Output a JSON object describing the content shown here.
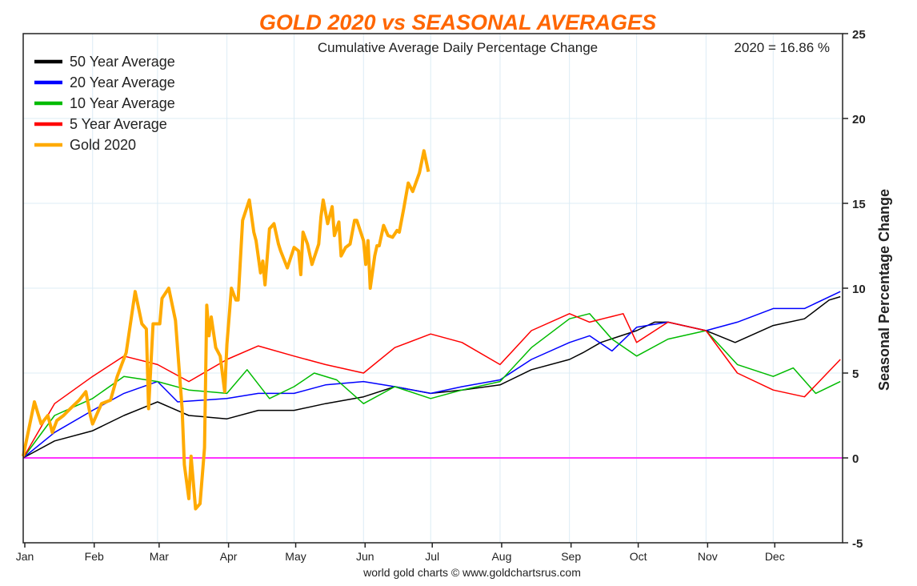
{
  "chart_data": {
    "type": "line",
    "title": "GOLD 2020 vs SEASONAL AVERAGES",
    "subtitle": "Cumulative Average Daily Percentage Change",
    "annotation": "2020 = 16.86 %",
    "ylabel": "Seasonal Percentage Change",
    "xlabel": "",
    "footer": "world gold charts © www.goldchartsrus.com",
    "ylim": [
      -5,
      25
    ],
    "yticks": [
      -5,
      0,
      5,
      10,
      15,
      20,
      25
    ],
    "y_axis_side": "right",
    "xticks": [
      "Jan",
      "Feb",
      "Mar",
      "Apr",
      "May",
      "Jun",
      "Jul",
      "Aug",
      "Sep",
      "Oct",
      "Nov",
      "Dec"
    ],
    "grid": true,
    "legend_position": "top-left",
    "zero_line_color": "#ff33ff",
    "series": [
      {
        "name": "50 Year Average",
        "color": "#000000",
        "points": [
          [
            "01-01",
            0
          ],
          [
            "01-15",
            1.0
          ],
          [
            "02-01",
            1.6
          ],
          [
            "02-15",
            2.5
          ],
          [
            "03-01",
            3.3
          ],
          [
            "03-15",
            2.5
          ],
          [
            "04-01",
            2.3
          ],
          [
            "04-15",
            2.8
          ],
          [
            "05-01",
            2.8
          ],
          [
            "05-15",
            3.2
          ],
          [
            "06-01",
            3.6
          ],
          [
            "06-15",
            4.2
          ],
          [
            "07-01",
            3.8
          ],
          [
            "07-15",
            4.0
          ],
          [
            "08-01",
            4.3
          ],
          [
            "08-15",
            5.2
          ],
          [
            "09-01",
            5.8
          ],
          [
            "09-07",
            6.2
          ],
          [
            "09-15",
            6.8
          ],
          [
            "10-01",
            7.5
          ],
          [
            "10-09",
            8.0
          ],
          [
            "10-15",
            8.0
          ],
          [
            "11-01",
            7.5
          ],
          [
            "11-14",
            6.8
          ],
          [
            "12-01",
            7.8
          ],
          [
            "12-15",
            8.2
          ],
          [
            "12-26",
            9.3
          ],
          [
            "12-31",
            9.5
          ]
        ]
      },
      {
        "name": "20 Year Average",
        "color": "#0000ff",
        "points": [
          [
            "01-01",
            0
          ],
          [
            "01-15",
            1.5
          ],
          [
            "02-01",
            2.8
          ],
          [
            "02-15",
            3.8
          ],
          [
            "03-01",
            4.5
          ],
          [
            "03-10",
            3.3
          ],
          [
            "04-01",
            3.5
          ],
          [
            "04-15",
            3.8
          ],
          [
            "05-01",
            3.8
          ],
          [
            "05-15",
            4.3
          ],
          [
            "06-01",
            4.5
          ],
          [
            "06-15",
            4.2
          ],
          [
            "07-01",
            3.8
          ],
          [
            "07-15",
            4.2
          ],
          [
            "08-01",
            4.6
          ],
          [
            "08-15",
            5.8
          ],
          [
            "09-01",
            6.8
          ],
          [
            "09-10",
            7.2
          ],
          [
            "09-20",
            6.3
          ],
          [
            "10-01",
            7.7
          ],
          [
            "10-15",
            8.0
          ],
          [
            "11-01",
            7.5
          ],
          [
            "11-15",
            8.0
          ],
          [
            "12-01",
            8.8
          ],
          [
            "12-15",
            8.8
          ],
          [
            "12-31",
            9.8
          ]
        ]
      },
      {
        "name": "10 Year Average",
        "color": "#00bb00",
        "points": [
          [
            "01-01",
            0
          ],
          [
            "01-15",
            2.5
          ],
          [
            "02-01",
            3.5
          ],
          [
            "02-15",
            4.8
          ],
          [
            "03-01",
            4.5
          ],
          [
            "03-15",
            4.0
          ],
          [
            "04-01",
            3.8
          ],
          [
            "04-10",
            5.2
          ],
          [
            "04-20",
            3.5
          ],
          [
            "05-01",
            4.2
          ],
          [
            "05-10",
            5.0
          ],
          [
            "05-20",
            4.6
          ],
          [
            "06-01",
            3.2
          ],
          [
            "06-15",
            4.2
          ],
          [
            "07-01",
            3.5
          ],
          [
            "07-15",
            4.0
          ],
          [
            "08-01",
            4.5
          ],
          [
            "08-15",
            6.5
          ],
          [
            "09-01",
            8.2
          ],
          [
            "09-10",
            8.5
          ],
          [
            "09-20",
            7.0
          ],
          [
            "10-01",
            6.0
          ],
          [
            "10-15",
            7.0
          ],
          [
            "11-01",
            7.5
          ],
          [
            "11-15",
            5.5
          ],
          [
            "12-01",
            4.8
          ],
          [
            "12-10",
            5.3
          ],
          [
            "12-20",
            3.8
          ],
          [
            "12-31",
            4.5
          ]
        ]
      },
      {
        "name": "5 Year Average",
        "color": "#ff0000",
        "points": [
          [
            "01-01",
            0
          ],
          [
            "01-15",
            3.2
          ],
          [
            "02-01",
            4.8
          ],
          [
            "02-15",
            6.0
          ],
          [
            "03-01",
            5.5
          ],
          [
            "03-15",
            4.5
          ],
          [
            "04-01",
            5.8
          ],
          [
            "04-15",
            6.6
          ],
          [
            "05-01",
            6.0
          ],
          [
            "05-15",
            5.5
          ],
          [
            "06-01",
            5.0
          ],
          [
            "06-15",
            6.5
          ],
          [
            "07-01",
            7.3
          ],
          [
            "07-15",
            6.8
          ],
          [
            "08-01",
            5.5
          ],
          [
            "08-15",
            7.5
          ],
          [
            "09-01",
            8.5
          ],
          [
            "09-10",
            8.0
          ],
          [
            "09-25",
            8.5
          ],
          [
            "10-01",
            6.8
          ],
          [
            "10-15",
            8.0
          ],
          [
            "11-01",
            7.5
          ],
          [
            "11-15",
            5.0
          ],
          [
            "12-01",
            4.0
          ],
          [
            "12-15",
            3.6
          ],
          [
            "12-31",
            5.8
          ]
        ]
      },
      {
        "name": "Gold 2020",
        "color": "#ffaa00",
        "points": [
          [
            "01-01",
            0.1
          ],
          [
            "01-06",
            3.3
          ],
          [
            "01-09",
            2.0
          ],
          [
            "01-12",
            2.5
          ],
          [
            "01-14",
            1.5
          ],
          [
            "01-16",
            2.2
          ],
          [
            "01-19",
            2.5
          ],
          [
            "01-22",
            2.9
          ],
          [
            "01-26",
            3.4
          ],
          [
            "01-29",
            3.9
          ],
          [
            "01-31",
            2.5
          ],
          [
            "02-01",
            2.0
          ],
          [
            "02-05",
            3.2
          ],
          [
            "02-09",
            3.4
          ],
          [
            "02-12",
            4.8
          ],
          [
            "02-16",
            6.2
          ],
          [
            "02-20",
            9.8
          ],
          [
            "02-23",
            7.9
          ],
          [
            "02-25",
            7.6
          ],
          [
            "02-26",
            2.9
          ],
          [
            "02-28",
            7.9
          ],
          [
            "03-02",
            7.9
          ],
          [
            "03-03",
            9.4
          ],
          [
            "03-06",
            10.0
          ],
          [
            "03-09",
            8.1
          ],
          [
            "03-12",
            2.9
          ],
          [
            "03-13",
            -0.4
          ],
          [
            "03-15",
            -2.4
          ],
          [
            "03-16",
            0.1
          ],
          [
            "03-18",
            -3.0
          ],
          [
            "03-20",
            -2.7
          ],
          [
            "03-22",
            0.6
          ],
          [
            "03-23",
            9.0
          ],
          [
            "03-24",
            7.2
          ],
          [
            "03-25",
            8.3
          ],
          [
            "03-27",
            6.5
          ],
          [
            "03-29",
            6.0
          ],
          [
            "03-31",
            3.9
          ],
          [
            "04-01",
            6.7
          ],
          [
            "04-03",
            10.0
          ],
          [
            "04-05",
            9.3
          ],
          [
            "04-06",
            9.3
          ],
          [
            "04-08",
            14.0
          ],
          [
            "04-11",
            15.2
          ],
          [
            "04-13",
            13.3
          ],
          [
            "04-14",
            12.8
          ],
          [
            "04-16",
            10.9
          ],
          [
            "04-17",
            11.6
          ],
          [
            "04-18",
            10.2
          ],
          [
            "04-20",
            13.5
          ],
          [
            "04-22",
            13.8
          ],
          [
            "04-24",
            12.6
          ],
          [
            "04-25",
            12.2
          ],
          [
            "04-28",
            11.2
          ],
          [
            "05-01",
            12.4
          ],
          [
            "05-03",
            12.2
          ],
          [
            "05-04",
            10.8
          ],
          [
            "05-05",
            13.3
          ],
          [
            "05-07",
            12.6
          ],
          [
            "05-09",
            11.4
          ],
          [
            "05-12",
            12.6
          ],
          [
            "05-13",
            14.2
          ],
          [
            "05-14",
            15.2
          ],
          [
            "05-16",
            13.8
          ],
          [
            "05-18",
            14.8
          ],
          [
            "05-19",
            13.1
          ],
          [
            "05-21",
            13.9
          ],
          [
            "05-22",
            11.9
          ],
          [
            "05-24",
            12.4
          ],
          [
            "05-26",
            12.6
          ],
          [
            "05-28",
            14.0
          ],
          [
            "05-29",
            14.0
          ],
          [
            "06-01",
            12.8
          ],
          [
            "06-02",
            11.4
          ],
          [
            "06-03",
            12.8
          ],
          [
            "06-04",
            10.0
          ],
          [
            "06-06",
            11.9
          ],
          [
            "06-07",
            12.5
          ],
          [
            "06-08",
            12.5
          ],
          [
            "06-10",
            13.7
          ],
          [
            "06-12",
            13.1
          ],
          [
            "06-14",
            13.0
          ],
          [
            "06-16",
            13.4
          ],
          [
            "06-17",
            13.3
          ],
          [
            "06-19",
            14.7
          ],
          [
            "06-21",
            16.2
          ],
          [
            "06-23",
            15.7
          ],
          [
            "06-26",
            16.8
          ],
          [
            "06-28",
            18.1
          ],
          [
            "06-30",
            16.86
          ]
        ]
      }
    ]
  }
}
